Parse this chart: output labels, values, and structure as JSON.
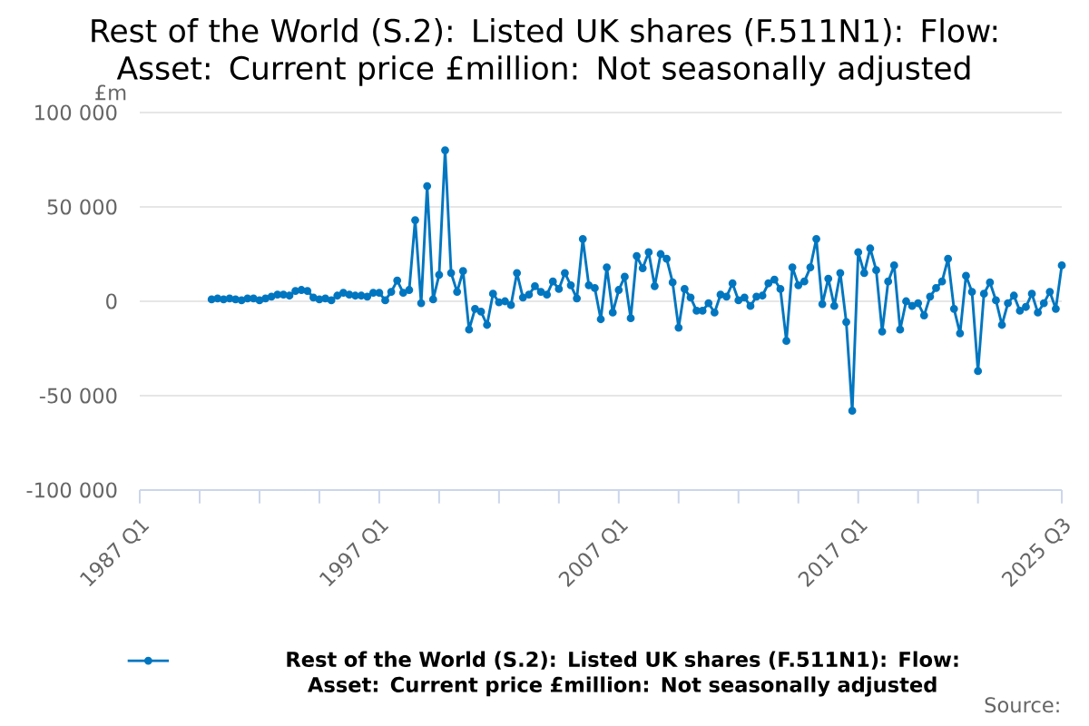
{
  "chart_data": {
    "type": "line",
    "title": "Rest of the World (S.2): Listed UK shares (F.511N1): Flow: Asset: Current price £million: Not seasonally adjusted",
    "ylabel": "£m",
    "annotations": [
      "Source:"
    ],
    "xlim": [
      "1987-01",
      "2025-07"
    ],
    "ylim": [
      -100000,
      100000
    ],
    "xticks": [
      {
        "value": "1987-01",
        "label": "1987 Q1"
      },
      {
        "value": "1989-07",
        "label": null
      },
      {
        "value": "1992-01",
        "label": null
      },
      {
        "value": "1994-07",
        "label": null
      },
      {
        "value": "1997-01",
        "label": "1997 Q1"
      },
      {
        "value": "1999-07",
        "label": null
      },
      {
        "value": "2002-01",
        "label": null
      },
      {
        "value": "2004-07",
        "label": null
      },
      {
        "value": "2007-01",
        "label": "2007 Q1"
      },
      {
        "value": "2009-07",
        "label": null
      },
      {
        "value": "2012-01",
        "label": null
      },
      {
        "value": "2014-07",
        "label": null
      },
      {
        "value": "2017-01",
        "label": "2017 Q1"
      },
      {
        "value": "2019-07",
        "label": null
      },
      {
        "value": "2022-01",
        "label": null
      },
      {
        "value": "2025-07",
        "label": "2025 Q3"
      }
    ],
    "yticks": [
      {
        "value": -100000,
        "label": "-100 000"
      },
      {
        "value": -50000,
        "label": "-50 000"
      },
      0,
      {
        "value": 50000,
        "label": "50 000"
      },
      {
        "value": 100000,
        "label": "100 000"
      }
    ],
    "grid": "y",
    "legend": "bottom",
    "marker": "circle",
    "x": [
      "1990-01",
      "1990-04",
      "1990-07",
      "1990-10",
      "1991-01",
      "1991-04",
      "1991-07",
      "1991-10",
      "1992-01",
      "1992-04",
      "1992-07",
      "1992-10",
      "1993-01",
      "1993-04",
      "1993-07",
      "1993-10",
      "1994-01",
      "1994-04",
      "1994-07",
      "1994-10",
      "1995-01",
      "1995-04",
      "1995-07",
      "1995-10",
      "1996-01",
      "1996-04",
      "1996-07",
      "1996-10",
      "1997-01",
      "1997-04",
      "1997-07",
      "1997-10",
      "1998-01",
      "1998-04",
      "1998-07",
      "1998-10",
      "1999-01",
      "1999-04",
      "1999-07",
      "1999-10",
      "2000-01",
      "2000-04",
      "2000-07",
      "2000-10",
      "2001-01",
      "2001-04",
      "2001-07",
      "2001-10",
      "2002-01",
      "2002-04",
      "2002-07",
      "2002-10",
      "2003-01",
      "2003-04",
      "2003-07",
      "2003-10",
      "2004-01",
      "2004-04",
      "2004-07",
      "2004-10",
      "2005-01",
      "2005-04",
      "2005-07",
      "2005-10",
      "2006-01",
      "2006-04",
      "2006-07",
      "2006-10",
      "2007-01",
      "2007-04",
      "2007-07",
      "2007-10",
      "2008-01",
      "2008-04",
      "2008-07",
      "2008-10",
      "2009-01",
      "2009-04",
      "2009-07",
      "2009-10",
      "2010-01",
      "2010-04",
      "2010-07",
      "2010-10",
      "2011-01",
      "2011-04",
      "2011-07",
      "2011-10",
      "2012-01",
      "2012-04",
      "2012-07",
      "2012-10",
      "2013-01",
      "2013-04",
      "2013-07",
      "2013-10",
      "2014-01",
      "2014-04",
      "2014-07",
      "2014-10",
      "2015-01",
      "2015-04",
      "2015-07",
      "2015-10",
      "2016-01",
      "2016-04",
      "2016-07",
      "2016-10",
      "2017-01",
      "2017-04",
      "2017-07",
      "2017-10",
      "2018-01",
      "2018-04",
      "2018-07",
      "2018-10",
      "2019-01",
      "2019-04",
      "2019-07",
      "2019-10",
      "2020-01",
      "2020-04",
      "2020-07",
      "2020-10",
      "2021-01",
      "2021-04",
      "2021-07",
      "2021-10",
      "2022-01",
      "2022-04",
      "2022-07",
      "2022-10",
      "2023-01",
      "2023-04",
      "2023-07",
      "2023-10",
      "2024-01",
      "2024-04",
      "2024-07",
      "2024-10",
      "2025-01",
      "2025-04",
      "2025-07"
    ],
    "series": [
      {
        "name": "Rest of the World (S.2): Listed UK shares (F.511N1): Flow: Asset: Current price £million: Not seasonally adjusted",
        "color": "#0076c0",
        "values": [
          1000,
          1500,
          1000,
          1500,
          1000,
          500,
          1500,
          1500,
          500,
          1500,
          2500,
          3500,
          3500,
          3000,
          5500,
          6000,
          5500,
          2000,
          1000,
          1500,
          500,
          3000,
          4500,
          3500,
          3000,
          3000,
          2500,
          4500,
          4500,
          500,
          5000,
          11000,
          4500,
          6000,
          43000,
          -1000,
          61000,
          1000,
          14000,
          80000,
          15000,
          5000,
          16000,
          -15000,
          -4000,
          -5500,
          -12500,
          4000,
          -500,
          0,
          -2000,
          15000,
          2000,
          3500,
          8000,
          5000,
          3500,
          10500,
          6500,
          15000,
          8500,
          1500,
          33000,
          8500,
          7000,
          -9500,
          18000,
          -6000,
          6000,
          13000,
          -9000,
          24000,
          17500,
          26000,
          8000,
          25000,
          22500,
          10000,
          -14000,
          6500,
          2000,
          -5000,
          -5000,
          -1000,
          -6000,
          3500,
          2500,
          9500,
          500,
          2000,
          -2500,
          2500,
          3000,
          9500,
          11500,
          6500,
          -21000,
          18000,
          8500,
          10500,
          18000,
          33000,
          -1500,
          12000,
          -2500,
          15000,
          -11000,
          -58000,
          26000,
          15000,
          28000,
          16500,
          -16000,
          10500,
          19000,
          -15000,
          0,
          -2500,
          -1000,
          -7500,
          2500,
          7000,
          10500,
          22500,
          -4000,
          -17000,
          13500,
          5000,
          -37000,
          4000,
          10000,
          500,
          -12500,
          -1000,
          3000,
          -5000,
          -3000,
          4000,
          -6000,
          -1000,
          5000,
          -4000,
          19000
        ]
      }
    ]
  }
}
